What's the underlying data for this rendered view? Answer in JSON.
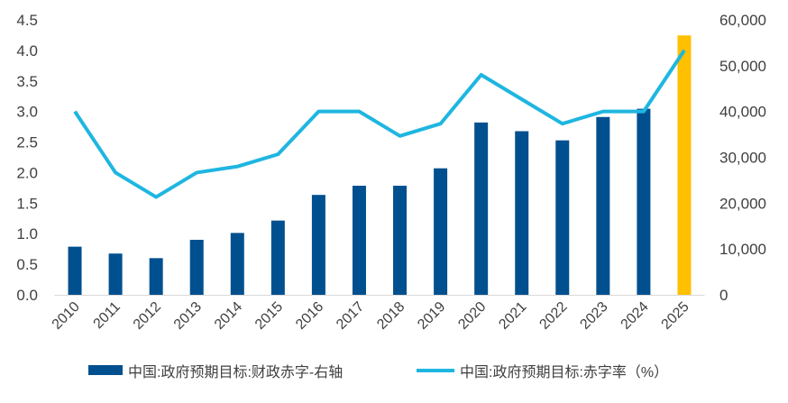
{
  "chart_data": {
    "type": "bar+line",
    "categories": [
      "2010",
      "2011",
      "2012",
      "2013",
      "2014",
      "2015",
      "2016",
      "2017",
      "2018",
      "2019",
      "2020",
      "2021",
      "2022",
      "2023",
      "2024",
      "2025"
    ],
    "series": [
      {
        "name": "中国:政府预期目标:财政赤字-右轴",
        "type": "bar",
        "axis": "right",
        "values": [
          10500,
          9000,
          8000,
          12000,
          13500,
          16200,
          21800,
          23800,
          23800,
          27600,
          37600,
          35700,
          33700,
          38800,
          40600,
          56600
        ],
        "color": "#00508F",
        "highlight_color": "#FFC000",
        "highlight_index": 15
      },
      {
        "name": "中国:政府预期目标:赤字率（%）",
        "type": "line",
        "axis": "left",
        "values": [
          3.0,
          2.0,
          1.6,
          2.0,
          2.1,
          2.3,
          3.0,
          3.0,
          2.6,
          2.8,
          3.6,
          3.2,
          2.8,
          3.0,
          3.0,
          4.0
        ],
        "color": "#1EB6E0"
      }
    ],
    "left_axis": {
      "ylim": [
        0,
        4.5
      ],
      "ticks": [
        "0.0",
        "0.5",
        "1.0",
        "1.5",
        "2.0",
        "2.5",
        "3.0",
        "3.5",
        "4.0",
        "4.5"
      ]
    },
    "right_axis": {
      "ylim": [
        0,
        60000
      ],
      "ticks": [
        "0",
        "10,000",
        "20,000",
        "30,000",
        "40,000",
        "50,000",
        "60,000"
      ]
    },
    "grid": false,
    "legend_position": "bottom"
  }
}
